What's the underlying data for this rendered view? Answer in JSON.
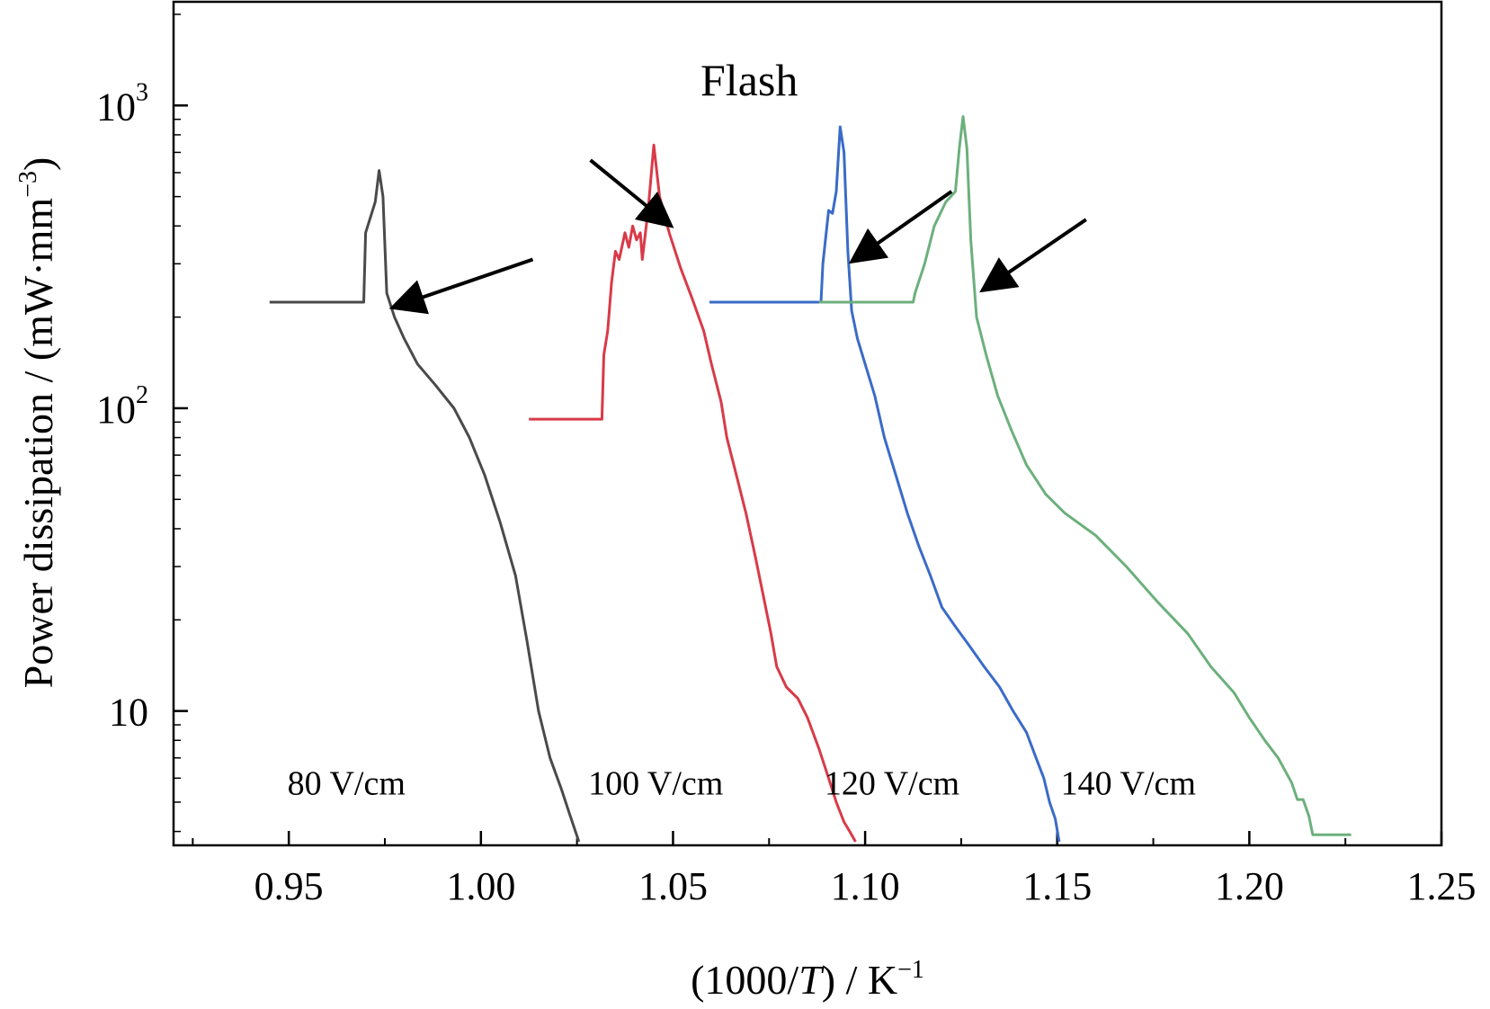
{
  "chart_data": {
    "type": "line",
    "title": "",
    "xlabel": "(1000/T) / K⁻¹",
    "xlabel_parts": [
      "(1000/",
      "T",
      ") / K",
      "−1"
    ],
    "ylabel": "Power dissipation / (mW·mm⁻³)",
    "ylabel_parts": [
      "Power dissipation / (mW·mm",
      "−3",
      ")"
    ],
    "xlim": [
      0.92,
      1.25
    ],
    "ylim": [
      3.6,
      2200
    ],
    "yscale": "log",
    "grid": false,
    "legend": "none",
    "x_ticks": [
      0.95,
      1.0,
      1.05,
      1.1,
      1.15,
      1.2,
      1.25
    ],
    "x_tick_labels": [
      "0.95",
      "1.00",
      "1.05",
      "1.10",
      "1.15",
      "1.20",
      "1.25"
    ],
    "y_ticks": [
      {
        "value": 1000,
        "base": "10",
        "exp": "3"
      },
      {
        "value": 100,
        "base": "10",
        "exp": "2"
      },
      {
        "value": 10,
        "base": "10",
        "exp": ""
      }
    ],
    "annotations": {
      "flash_label": "Flash",
      "curve_labels": [
        {
          "text": "80 V/cm",
          "x": 0.965,
          "y": 5.8
        },
        {
          "text": "100 V/cm",
          "x": 1.0455,
          "y": 5.8
        },
        {
          "text": "120 V/cm",
          "x": 1.107,
          "y": 5.8
        },
        {
          "text": "140 V/cm",
          "x": 1.1685,
          "y": 5.8
        }
      ],
      "arrows": [
        {
          "from": [
            1.0135,
            310
          ],
          "to": [
            0.977,
            215
          ]
        },
        {
          "from": [
            1.0285,
            660
          ],
          "to": [
            1.0495,
            400
          ]
        },
        {
          "from": [
            1.1225,
            520
          ],
          "to": [
            1.0965,
            305
          ]
        },
        {
          "from": [
            1.1575,
            420
          ],
          "to": [
            1.1305,
            245
          ]
        }
      ]
    },
    "series": [
      {
        "name": "80 V/cm",
        "color": "#4a4a4a",
        "points": [
          [
            0.945,
            224
          ],
          [
            0.9695,
            224
          ],
          [
            0.97,
            380
          ],
          [
            0.9725,
            480
          ],
          [
            0.9735,
            610
          ],
          [
            0.9745,
            500
          ],
          [
            0.9755,
            240
          ],
          [
            0.9775,
            200
          ],
          [
            0.98,
            170
          ],
          [
            0.9835,
            140
          ],
          [
            0.988,
            120
          ],
          [
            0.993,
            100
          ],
          [
            0.997,
            80
          ],
          [
            1.001,
            60
          ],
          [
            1.005,
            42
          ],
          [
            1.009,
            28
          ],
          [
            1.012,
            17
          ],
          [
            1.015,
            10
          ],
          [
            1.018,
            7
          ],
          [
            1.021,
            5.5
          ],
          [
            1.023,
            4.6
          ],
          [
            1.0255,
            3.7
          ]
        ]
      },
      {
        "name": "100 V/cm",
        "color": "#d93a48",
        "points": [
          [
            1.0125,
            92
          ],
          [
            1.0315,
            92
          ],
          [
            1.032,
            150
          ],
          [
            1.033,
            180
          ],
          [
            1.034,
            260
          ],
          [
            1.035,
            330
          ],
          [
            1.036,
            310
          ],
          [
            1.0375,
            380
          ],
          [
            1.0385,
            340
          ],
          [
            1.0395,
            400
          ],
          [
            1.0405,
            360
          ],
          [
            1.0415,
            380
          ],
          [
            1.042,
            310
          ],
          [
            1.0435,
            450
          ],
          [
            1.045,
            740
          ],
          [
            1.0465,
            500
          ],
          [
            1.049,
            380
          ],
          [
            1.052,
            290
          ],
          [
            1.055,
            230
          ],
          [
            1.058,
            180
          ],
          [
            1.06,
            140
          ],
          [
            1.0625,
            105
          ],
          [
            1.064,
            80
          ],
          [
            1.0665,
            60
          ],
          [
            1.069,
            45
          ],
          [
            1.0715,
            32
          ],
          [
            1.0735,
            24
          ],
          [
            1.0755,
            18
          ],
          [
            1.077,
            14
          ],
          [
            1.0795,
            12
          ],
          [
            1.0825,
            11
          ],
          [
            1.085,
            9.5
          ],
          [
            1.088,
            7.5
          ],
          [
            1.0905,
            6
          ],
          [
            1.0925,
            5
          ],
          [
            1.0945,
            4.3
          ],
          [
            1.096,
            4
          ],
          [
            1.0975,
            3.7
          ]
        ]
      },
      {
        "name": "120 V/cm",
        "color": "#3a6bc8",
        "points": [
          [
            1.0595,
            224
          ],
          [
            1.0885,
            224
          ],
          [
            1.089,
            300
          ],
          [
            1.0905,
            450
          ],
          [
            1.0915,
            440
          ],
          [
            1.0925,
            520
          ],
          [
            1.0935,
            850
          ],
          [
            1.0945,
            700
          ],
          [
            1.0955,
            330
          ],
          [
            1.0965,
            210
          ],
          [
            1.098,
            170
          ],
          [
            1.1,
            140
          ],
          [
            1.1025,
            110
          ],
          [
            1.105,
            80
          ],
          [
            1.108,
            60
          ],
          [
            1.111,
            45
          ],
          [
            1.114,
            35
          ],
          [
            1.117,
            28
          ],
          [
            1.12,
            22
          ],
          [
            1.1235,
            19
          ],
          [
            1.127,
            16.5
          ],
          [
            1.131,
            14
          ],
          [
            1.135,
            12
          ],
          [
            1.1385,
            10
          ],
          [
            1.142,
            8.5
          ],
          [
            1.1445,
            7
          ],
          [
            1.1465,
            6
          ],
          [
            1.148,
            5
          ],
          [
            1.1495,
            4.4
          ],
          [
            1.1505,
            3.7
          ]
        ]
      },
      {
        "name": "140 V/cm",
        "color": "#6cb07c",
        "points": [
          [
            1.088,
            224
          ],
          [
            1.1125,
            224
          ],
          [
            1.113,
            240
          ],
          [
            1.1155,
            300
          ],
          [
            1.118,
            400
          ],
          [
            1.121,
            480
          ],
          [
            1.1235,
            520
          ],
          [
            1.1245,
            720
          ],
          [
            1.1255,
            920
          ],
          [
            1.1265,
            720
          ],
          [
            1.1275,
            360
          ],
          [
            1.129,
            200
          ],
          [
            1.1315,
            150
          ],
          [
            1.1345,
            110
          ],
          [
            1.138,
            85
          ],
          [
            1.142,
            65
          ],
          [
            1.147,
            52
          ],
          [
            1.152,
            45
          ],
          [
            1.16,
            38
          ],
          [
            1.168,
            30
          ],
          [
            1.176,
            23
          ],
          [
            1.184,
            18
          ],
          [
            1.19,
            14
          ],
          [
            1.196,
            11.5
          ],
          [
            1.2,
            9.5
          ],
          [
            1.204,
            8
          ],
          [
            1.2075,
            7
          ],
          [
            1.211,
            5.8
          ],
          [
            1.2125,
            5.1
          ],
          [
            1.214,
            5.1
          ],
          [
            1.2155,
            4.5
          ],
          [
            1.2165,
            3.9
          ],
          [
            1.2265,
            3.9
          ]
        ]
      }
    ]
  }
}
